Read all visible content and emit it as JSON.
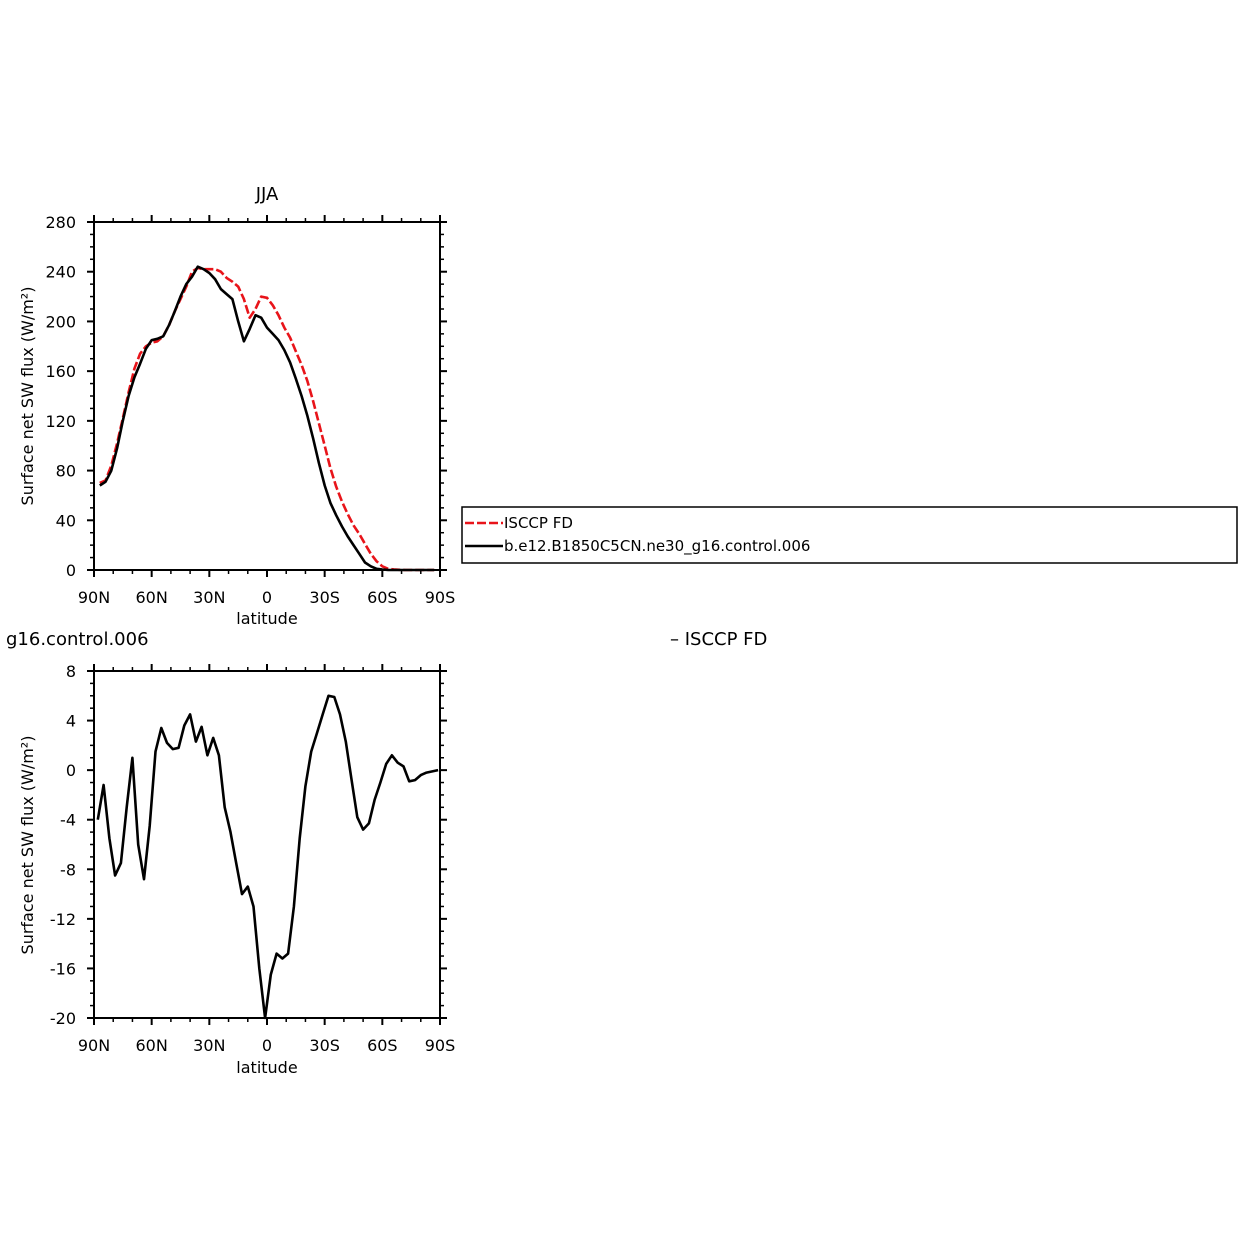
{
  "chart_data": [
    {
      "type": "line",
      "title": "JJA",
      "xlabel": "latitude",
      "ylabel": "Surface net SW flux (W/m²)",
      "xlim": [
        90,
        -90
      ],
      "ylim": [
        0,
        280
      ],
      "xticks": [
        {
          "value": 90,
          "label": "90N"
        },
        {
          "value": 60,
          "label": "60N"
        },
        {
          "value": 30,
          "label": "30N"
        },
        {
          "value": 0,
          "label": "0"
        },
        {
          "value": -30,
          "label": "30S"
        },
        {
          "value": -60,
          "label": "60S"
        },
        {
          "value": -90,
          "label": "90S"
        }
      ],
      "yticks": [
        "0",
        "40",
        "80",
        "120",
        "160",
        "200",
        "240",
        "280"
      ],
      "legend": "right",
      "series": [
        {
          "name": "ISCCP FD",
          "color": "#e8141a",
          "dash": true,
          "x": [
            87,
            84,
            81,
            78,
            75,
            72,
            69,
            66,
            63,
            60,
            57,
            54,
            51,
            48,
            45,
            42,
            39,
            36,
            33,
            30,
            27,
            24,
            21,
            18,
            15,
            12,
            9,
            6,
            3,
            0,
            -3,
            -6,
            -9,
            -12,
            -15,
            -18,
            -21,
            -24,
            -27,
            -30,
            -33,
            -36,
            -39,
            -42,
            -45,
            -48,
            -51,
            -54,
            -57,
            -60,
            -63,
            -66,
            -69,
            -72,
            -75,
            -78,
            -81,
            -84,
            -87
          ],
          "y": [
            70,
            72,
            84,
            102,
            122,
            143,
            162,
            174,
            180,
            183,
            184,
            188,
            197,
            208,
            218,
            228,
            240,
            243,
            242,
            242,
            242,
            240,
            235,
            232,
            228,
            218,
            203,
            210,
            220,
            219,
            213,
            205,
            195,
            187,
            176,
            165,
            152,
            136,
            118,
            100,
            82,
            67,
            55,
            45,
            36,
            29,
            21,
            13,
            7,
            3,
            1,
            0.5,
            0.2,
            0,
            0,
            0,
            0,
            0,
            0
          ]
        },
        {
          "name": "b.e12.B1850C5CN.ne30_g16.control.006",
          "color": "#000000",
          "dash": false,
          "x": [
            87,
            84,
            81,
            78,
            75,
            72,
            69,
            66,
            63,
            60,
            57,
            54,
            51,
            48,
            45,
            42,
            39,
            36,
            33,
            30,
            27,
            24,
            21,
            18,
            15,
            12,
            9,
            6,
            3,
            0,
            -3,
            -6,
            -9,
            -12,
            -15,
            -18,
            -21,
            -24,
            -27,
            -30,
            -33,
            -36,
            -39,
            -42,
            -45,
            -48,
            -51,
            -54,
            -57,
            -60,
            -63,
            -66,
            -69,
            -72,
            -75,
            -78,
            -81,
            -84,
            -87
          ],
          "y": [
            68,
            71,
            80,
            98,
            120,
            140,
            155,
            166,
            178,
            185,
            186,
            188,
            197,
            208,
            220,
            230,
            236,
            244,
            242,
            239,
            234,
            226,
            222,
            218,
            200,
            184,
            194,
            205,
            203,
            195,
            190,
            185,
            177,
            167,
            154,
            140,
            124,
            106,
            86,
            68,
            54,
            44,
            35,
            27,
            20,
            13,
            6,
            3,
            1,
            0.4,
            0.1,
            0,
            0,
            0,
            0,
            0,
            0,
            0,
            0
          ]
        }
      ]
    },
    {
      "type": "line",
      "title": "g16.control.006",
      "subtitle": "– ISCCP FD",
      "xlabel": "latitude",
      "ylabel": "Surface net SW flux (W/m²)",
      "xlim": [
        90,
        -90
      ],
      "ylim": [
        -20,
        8
      ],
      "xticks": [
        {
          "value": 90,
          "label": "90N"
        },
        {
          "value": 60,
          "label": "60N"
        },
        {
          "value": 30,
          "label": "30N"
        },
        {
          "value": 0,
          "label": "0"
        },
        {
          "value": -30,
          "label": "30S"
        },
        {
          "value": -60,
          "label": "60S"
        },
        {
          "value": -90,
          "label": "90S"
        }
      ],
      "yticks": [
        "-20",
        "-16",
        "-12",
        "-8",
        "-4",
        "0",
        "4",
        "8"
      ],
      "series": [
        {
          "color": "#000000",
          "x": [
            88,
            85,
            82,
            79,
            76,
            73,
            70,
            67,
            64,
            61,
            58,
            55,
            52,
            49,
            46,
            43,
            40,
            37,
            34,
            31,
            28,
            25,
            22,
            19,
            16,
            13,
            10,
            7,
            4,
            1,
            -2,
            -5,
            -8,
            -11,
            -14,
            -17,
            -20,
            -23,
            -26,
            -29,
            -32,
            -35,
            -38,
            -41,
            -44,
            -47,
            -50,
            -53,
            -56,
            -59,
            -62,
            -65,
            -68,
            -71,
            -74,
            -77,
            -80,
            -83,
            -86,
            -89
          ],
          "y": [
            -4,
            -1.2,
            -5.5,
            -8.5,
            -7.5,
            -3,
            1,
            -6,
            -8.8,
            -4.5,
            1.5,
            3.4,
            2.2,
            1.7,
            1.8,
            3.6,
            4.5,
            2.3,
            3.5,
            1.2,
            2.6,
            1.2,
            -3,
            -5,
            -7.5,
            -10,
            -9.4,
            -11,
            -16,
            -20,
            -16.5,
            -14.8,
            -15.2,
            -14.8,
            -11,
            -5.5,
            -1.3,
            1.5,
            3,
            4.5,
            6,
            5.9,
            4.5,
            2.3,
            -0.8,
            -3.8,
            -4.8,
            -4.3,
            -2.4,
            -1,
            0.5,
            1.2,
            0.6,
            0.3,
            -0.9,
            -0.8,
            -0.4,
            -0.2,
            -0.1,
            0
          ]
        }
      ]
    }
  ]
}
